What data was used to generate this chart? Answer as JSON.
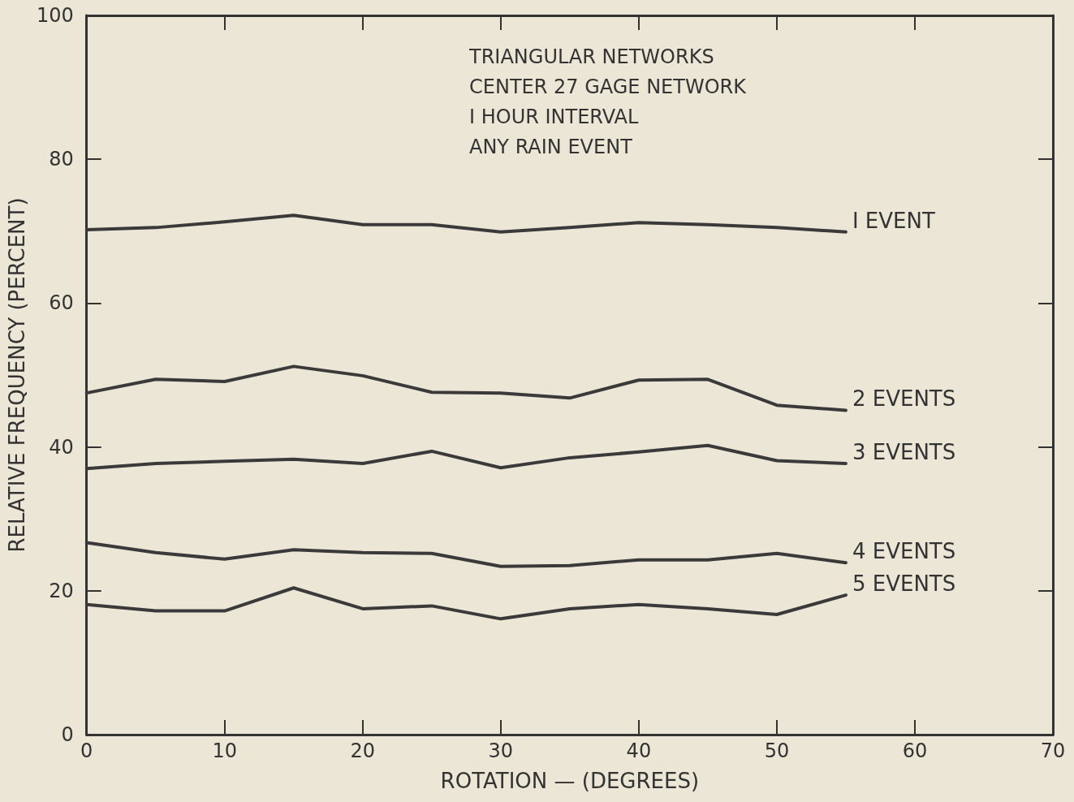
{
  "chart_data": {
    "type": "line",
    "xlabel": "ROTATION — (DEGREES)",
    "ylabel": "RELATIVE FREQUENCY (PERCENT)",
    "annotations": [
      "TRIANGULAR NETWORKS",
      "CENTER 27 GAGE NETWORK",
      "I HOUR INTERVAL",
      "ANY RAIN EVENT"
    ],
    "x": [
      0,
      5,
      10,
      15,
      20,
      25,
      30,
      35,
      40,
      45,
      50,
      55
    ],
    "series": [
      {
        "name": "I EVENT",
        "color": "#3a3a3a",
        "values": [
          70.2,
          70.5,
          71.3,
          72.2,
          70.9,
          70.9,
          69.9,
          70.5,
          71.2,
          70.9,
          70.5,
          69.9
        ]
      },
      {
        "name": "2 EVENTS",
        "color": "#3a3a3a",
        "values": [
          47.5,
          49.4,
          49.1,
          51.2,
          49.9,
          47.6,
          47.5,
          46.8,
          49.3,
          49.4,
          45.8,
          45.1
        ]
      },
      {
        "name": "3 EVENTS",
        "color": "#3a3a3a",
        "values": [
          37.0,
          37.7,
          38.0,
          38.3,
          37.7,
          39.4,
          37.1,
          38.5,
          39.3,
          40.2,
          38.1,
          37.7
        ]
      },
      {
        "name": "4 EVENTS",
        "color": "#3a3a3a",
        "values": [
          26.7,
          25.3,
          24.4,
          25.7,
          25.3,
          25.2,
          23.4,
          23.5,
          24.3,
          24.3,
          25.2,
          23.9
        ]
      },
      {
        "name": "5 EVENTS",
        "color": "#3a3a3a",
        "values": [
          18.1,
          17.2,
          17.2,
          20.4,
          17.5,
          17.9,
          16.1,
          17.5,
          18.1,
          17.5,
          16.7,
          19.4
        ]
      }
    ],
    "xlim": [
      0,
      70
    ],
    "xticks": [
      0,
      10,
      20,
      30,
      40,
      50,
      60,
      70
    ],
    "ylim": [
      0,
      100
    ],
    "yticks": [
      0,
      20,
      40,
      60,
      80,
      100
    ],
    "grid": false,
    "legend": false,
    "marker": "none",
    "line_style": "solid"
  }
}
